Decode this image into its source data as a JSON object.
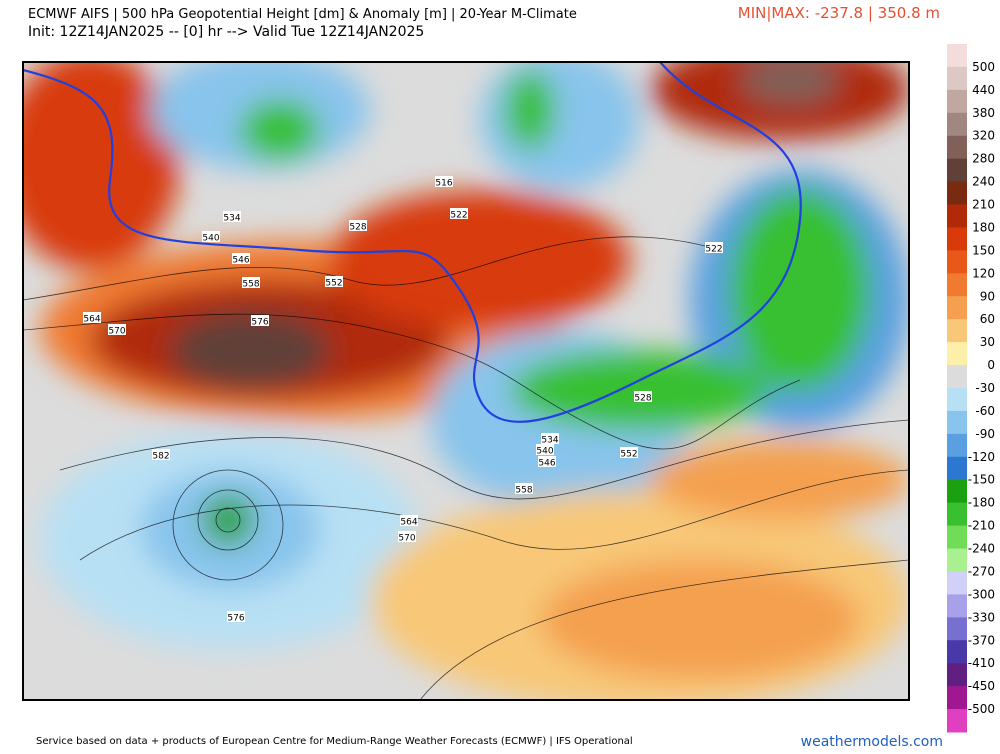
{
  "header": {
    "title": "ECMWF AIFS | 500 hPa Geopotential Height [dm] & Anomaly [m] | 20-Year M-Climate",
    "subtitle": "Init: 12Z14JAN2025 -- [0] hr --> Valid Tue 12Z14JAN2025",
    "minmax": "MIN|MAX: -237.8 | 350.8 m"
  },
  "colorbar": {
    "labels": [
      "500",
      "440",
      "380",
      "320",
      "280",
      "240",
      "210",
      "180",
      "150",
      "120",
      "90",
      "60",
      "30",
      "0",
      "-30",
      "-60",
      "-90",
      "-120",
      "-150",
      "-180",
      "-210",
      "-240",
      "-270",
      "-300",
      "-330",
      "-370",
      "-410",
      "-450",
      "-500"
    ],
    "colors": [
      "#f4dcdc",
      "#dcc8c4",
      "#c0a8a0",
      "#a08880",
      "#806058",
      "#604038",
      "#7a2a10",
      "#b02a08",
      "#d83a0a",
      "#e85818",
      "#f07a30",
      "#f4a050",
      "#f8c878",
      "#fcf0a8",
      "#dcdcdc",
      "#b8e0f4",
      "#88c4ec",
      "#5aa0e0",
      "#2c78d0",
      "#1aa010",
      "#38c030",
      "#70dc58",
      "#a8f090",
      "#d0d0f8",
      "#a8a0e8",
      "#7870d0",
      "#4838a8",
      "#602080",
      "#a01890",
      "#e040c0"
    ]
  },
  "contours": [
    "534",
    "540",
    "546",
    "558",
    "564",
    "570",
    "576",
    "582",
    "576",
    "528",
    "552",
    "516",
    "522",
    "522",
    "528",
    "534",
    "540",
    "546",
    "552",
    "558",
    "564",
    "570"
  ],
  "footer": {
    "credit": "Service based on data + products of European Centre for Medium-Range Weather Forecasts (ECMWF) | IFS Operational",
    "brand": "weathermodels.com"
  }
}
